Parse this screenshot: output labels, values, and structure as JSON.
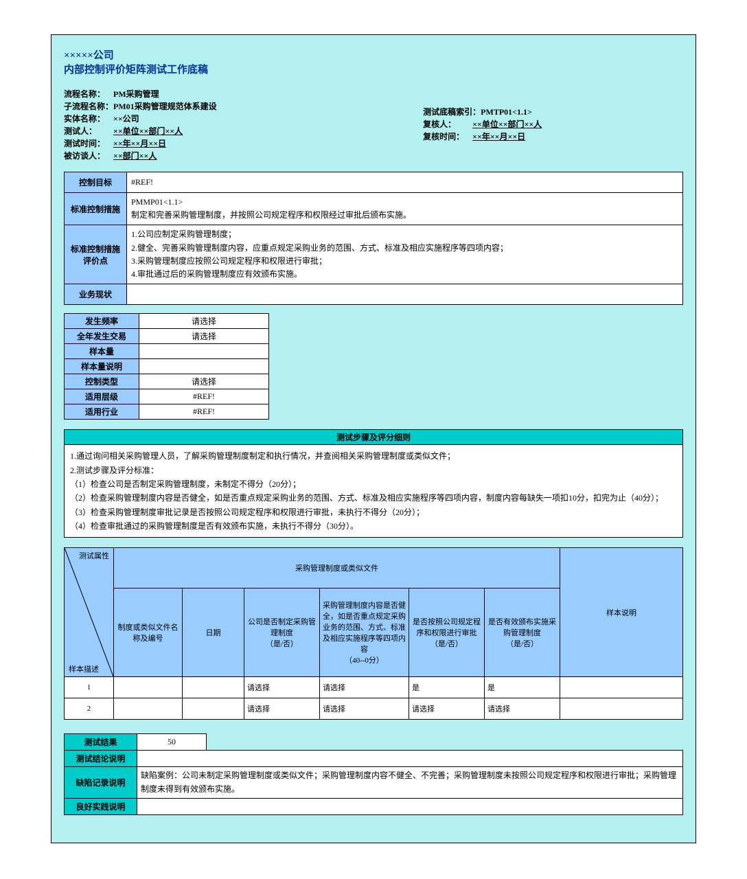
{
  "header": {
    "company": "×××××公司",
    "doc_title": "内部控制评价矩阵测试工作底稿"
  },
  "meta": {
    "left": [
      {
        "label": "流程名称：",
        "value": "PM采购管理"
      },
      {
        "label": "子流程名称：",
        "value": "PM01采购管理规范体系建设"
      },
      {
        "label": "实体名称：",
        "value": "××公司"
      },
      {
        "label": "测试人：",
        "value": "××单位××部门××人",
        "underline": true
      },
      {
        "label": "测试时间：",
        "value": "××年××月××日",
        "underline": true
      },
      {
        "label": "被访谈人：",
        "value": "××部门××人",
        "underline": true
      }
    ],
    "right": [
      {
        "label": "测试底稿索引：",
        "value": "PMTP01<1.1>"
      },
      {
        "label": "复核人：",
        "value": "××单位××部门××人",
        "underline": true
      },
      {
        "label": "复核时间：",
        "value": "××年××月××日",
        "underline": true
      }
    ]
  },
  "info_rows": [
    {
      "label": "控制目标",
      "value": "#REF!"
    },
    {
      "label": "标准控制措施",
      "value": "PMMP01<1.1>\n制定和完善采购管理制度，并按照公司规定程序和权限经过审批后颁布实施。"
    },
    {
      "label": "标准控制措施评价点",
      "value": "1.公司应制定采购管理制度；\n2.健全、完善采购管理制度内容，应重点规定采购业务的范围、方式、标准及相应实施程序等四项内容；\n3.采购管理制度应按照公司规定程序和权限进行审批；\n4.审批通过后的采购管理制度应有效颁布实施。"
    },
    {
      "label": "业务现状",
      "value": " "
    }
  ],
  "params": [
    {
      "label": "发生频率",
      "value": "请选择"
    },
    {
      "label": "全年发生交易",
      "value": "请选择"
    },
    {
      "label": "样本量",
      "value": ""
    },
    {
      "label": "样本量说明",
      "value": ""
    },
    {
      "label": "控制类型",
      "value": "请选择"
    },
    {
      "label": "适用层级",
      "value": "#REF!"
    },
    {
      "label": "适用行业",
      "value": "#REF!"
    }
  ],
  "steps": {
    "header": "测试步骤及评分细则",
    "body": "1.通过询问相关采购管理人员，了解采购管理制度制定和执行情况，并查阅相关采购管理制度或类似文件；\n2.测试步骤及评分标准：\n（1）检查公司是否制定采购管理制度，未制定不得分（20分）；\n（2）检查采购管理制度内容是否健全，如是否重点规定采购业务的范围、方式、标准及相应实施程序等四项内容，制度内容每缺失一项扣10分，扣完为止（40分）；\n（3）检查采购管理制度审批记录是否按照公司规定程序和权限进行审批，未执行不得分（20分）；\n（4）检查审批通过的采购管理制度是否有效颁布实施，未执行不得分（30分）。"
  },
  "grid": {
    "diag_top": "测试属性",
    "diag_bottom": "样本描述",
    "group_header": "采购管理制度或类似文件",
    "cols": [
      "制度或类似文件名称及编号",
      "日期",
      "公司是否制定采购管理制度\n（是/否）",
      "采购管理制度内容是否健全，如是否重点规定采购业务的范围、方式、标准及相应实施程序等四项内容\n（40--0分）",
      "是否按照公司规定程序和权限进行审批\n（是/否）",
      "是否有效颁布实施采购管理制度\n（是/否）",
      "样本说明"
    ],
    "rows": [
      {
        "idx": "1",
        "c": [
          "",
          "",
          "请选择",
          "请选择",
          "是",
          "是",
          ""
        ]
      },
      {
        "idx": "2",
        "c": [
          "",
          "",
          "请选择",
          "请选择",
          "请选择",
          "请选择",
          ""
        ]
      }
    ]
  },
  "results": [
    {
      "label": "测试结果",
      "value": "50",
      "short": true
    },
    {
      "label": "测试结论说明",
      "value": ""
    },
    {
      "label": "缺陷记录说明",
      "value": "缺陷案例：公司未制定采购管理制度或类似文件；采购管理制度内容不健全、不完善；采购管理制度未按照公司规定程序和权限进行审批；采购管理制度未得到有效颁布实施。"
    },
    {
      "label": "良好实践说明",
      "value": ""
    }
  ]
}
